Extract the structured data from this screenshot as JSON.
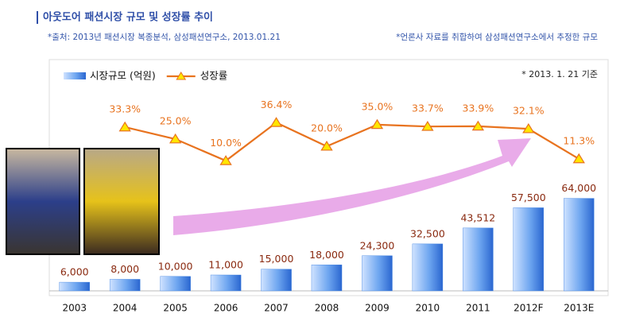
{
  "chart_data": {
    "type": "bar+line",
    "title": "아웃도어 패션시장 규모 및 성장률 추이",
    "subtitle": "*출처: 2013년 패션시장 복종분석, 삼성패션연구소, 2013.01.21",
    "note": "*언론사 자료를 취합하여 삼성패션연구소에서 추정한 규모",
    "annotation": "* 2013. 1. 21 기준",
    "categories": [
      "2003",
      "2004",
      "2005",
      "2006",
      "2007",
      "2008",
      "2009",
      "2010",
      "2011",
      "2012F",
      "2013E"
    ],
    "series": [
      {
        "name": "시장규모 (억원)",
        "type": "bar",
        "color": "#3a7fe0",
        "values": [
          6000,
          8000,
          10000,
          11000,
          15000,
          18000,
          24300,
          32500,
          43512,
          57500,
          64000
        ],
        "value_labels": [
          "6,000",
          "8,000",
          "10,000",
          "11,000",
          "15,000",
          "18,000",
          "24,300",
          "32,500",
          "43,512",
          "57,500",
          "64,000"
        ]
      },
      {
        "name": "성장률",
        "type": "line",
        "axis": "y2",
        "color": "#e8731f",
        "marker_color": "#ffe600",
        "values": [
          null,
          33.3,
          25.0,
          10.0,
          36.4,
          20.0,
          35.0,
          33.7,
          33.9,
          32.1,
          11.3
        ],
        "value_labels": [
          null,
          "33.3%",
          "25.0%",
          "10.0%",
          "36.4%",
          "20.0%",
          "35.0%",
          "33.7%",
          "33.9%",
          "32.1%",
          "11.3%"
        ]
      }
    ],
    "ylim": [
      0,
      160000
    ],
    "y2lim": [
      -80,
      80
    ]
  }
}
